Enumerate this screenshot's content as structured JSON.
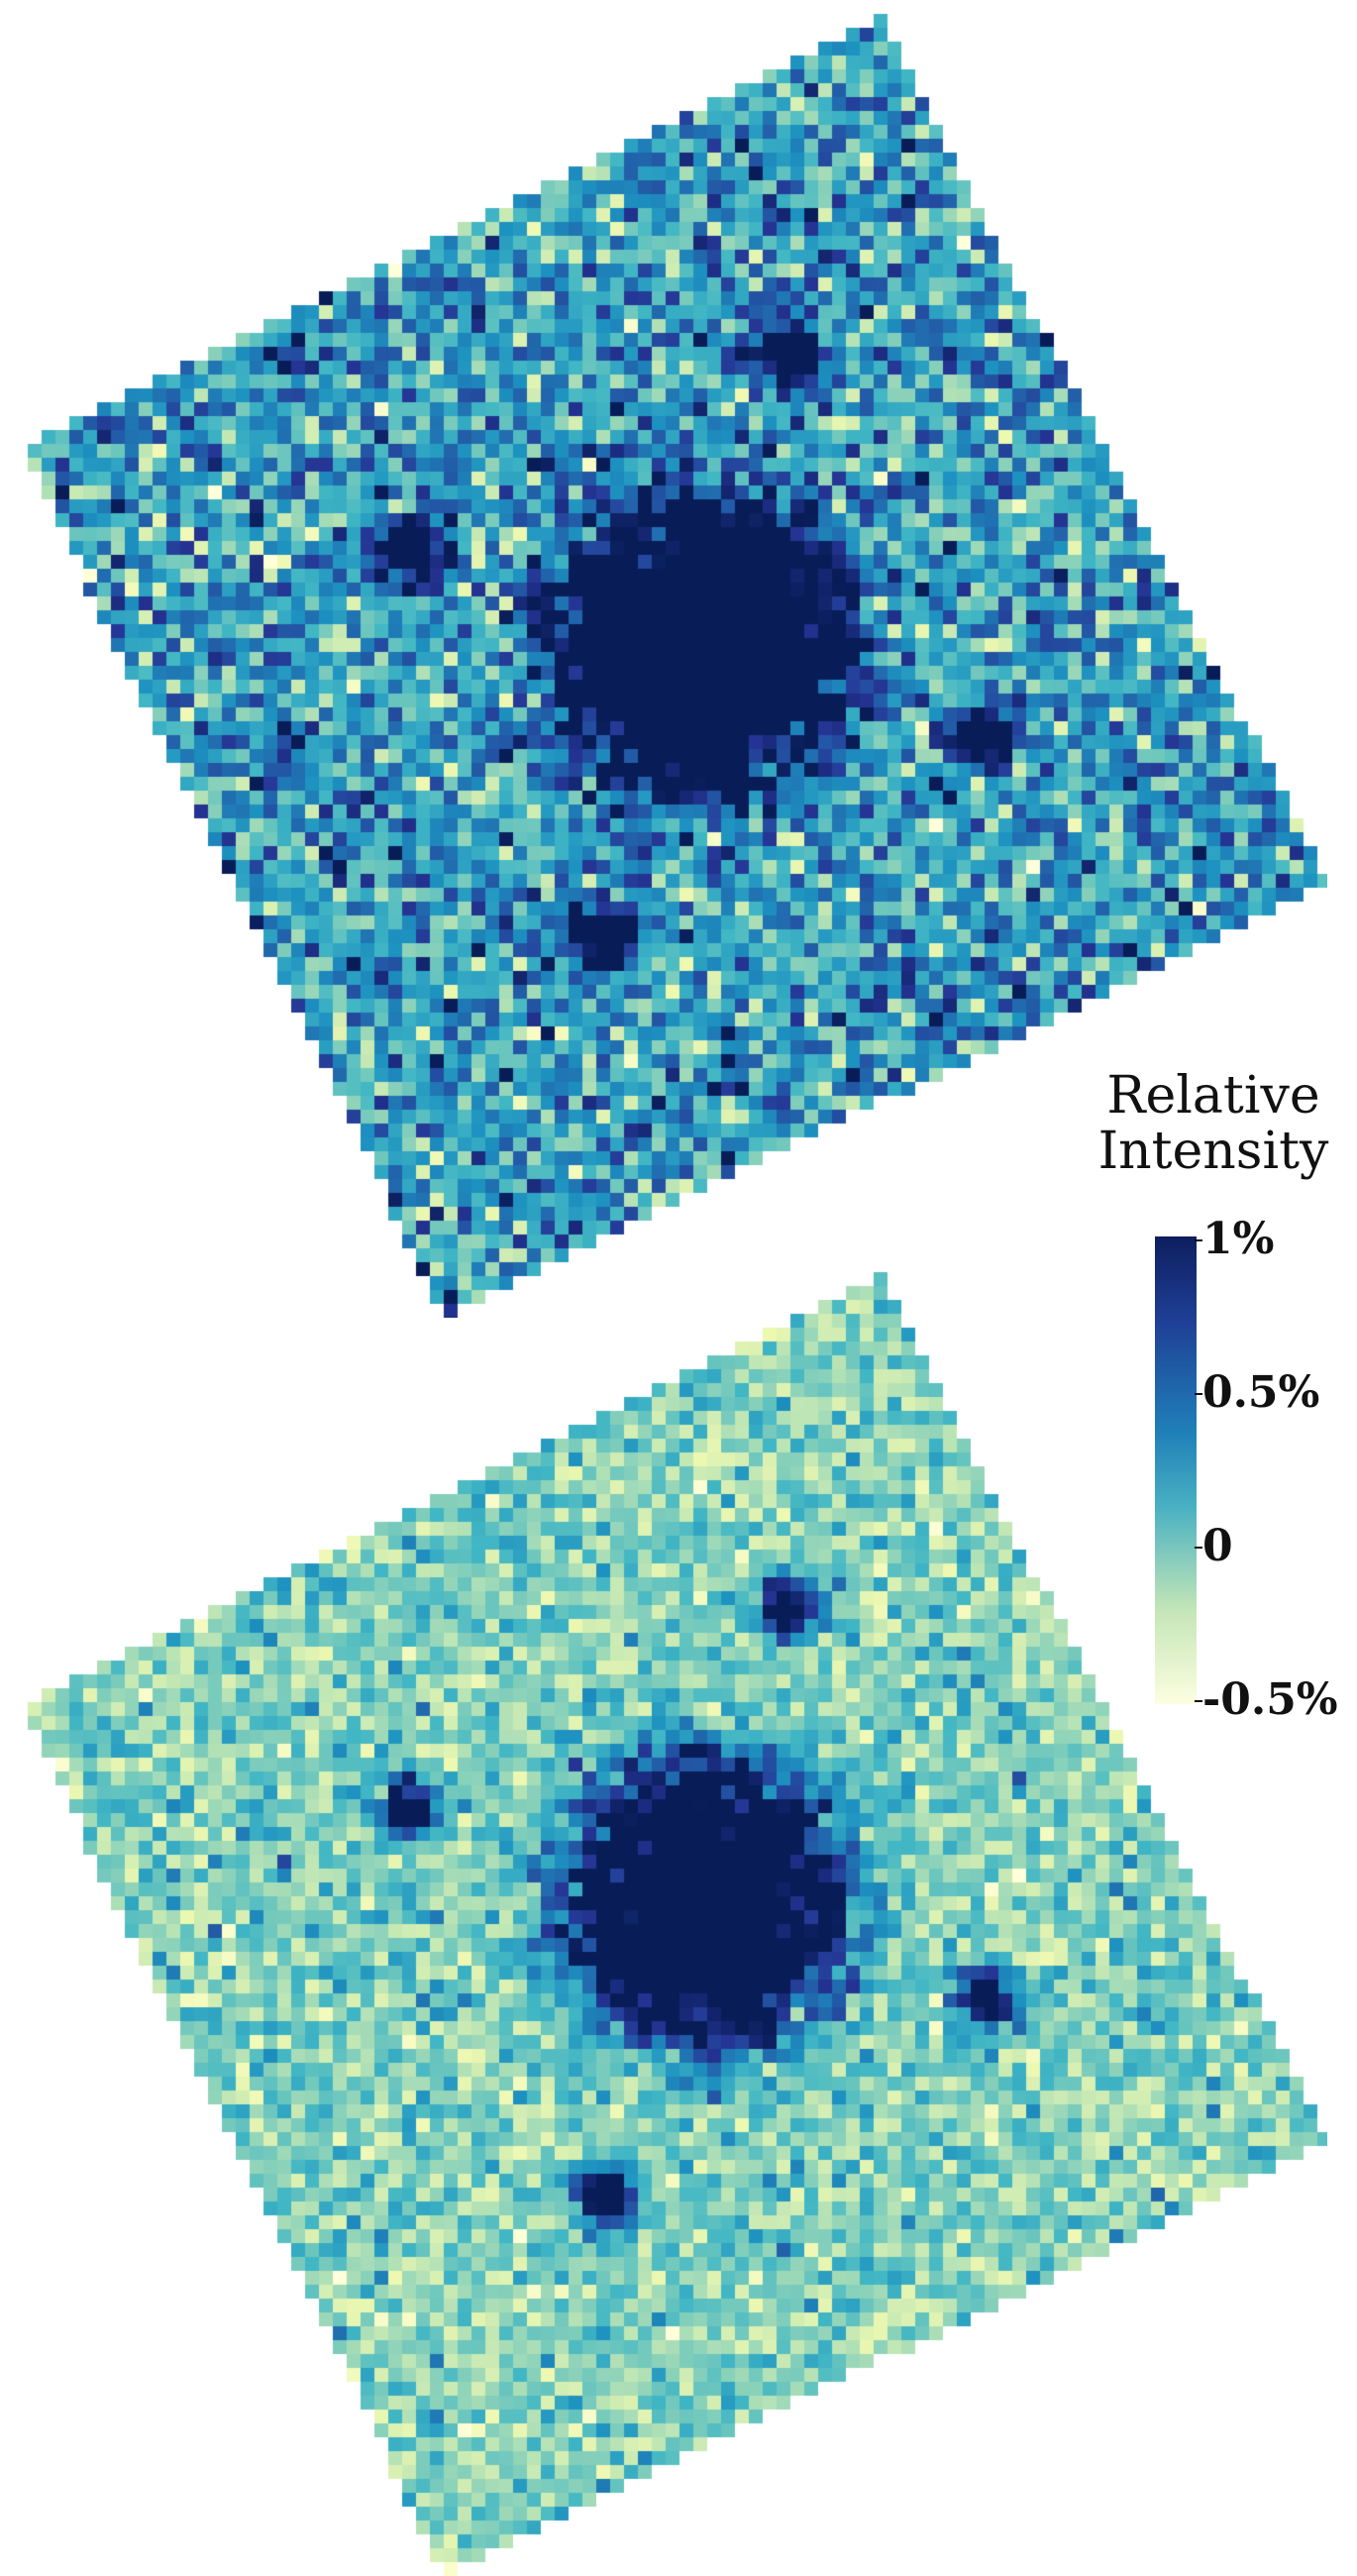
{
  "colorbar": {
    "title_line1": "Relative",
    "title_line2": "Intensity",
    "ticks": [
      "1%",
      "0.5%",
      "0",
      "-0.5%"
    ],
    "range_percent": [
      -0.5,
      1.0
    ],
    "colormap": "YlGnBu"
  },
  "panels": [
    {
      "name": "top",
      "background_level_percent": 0.35
    },
    {
      "name": "bottom",
      "background_level_percent": 0.05
    }
  ]
}
